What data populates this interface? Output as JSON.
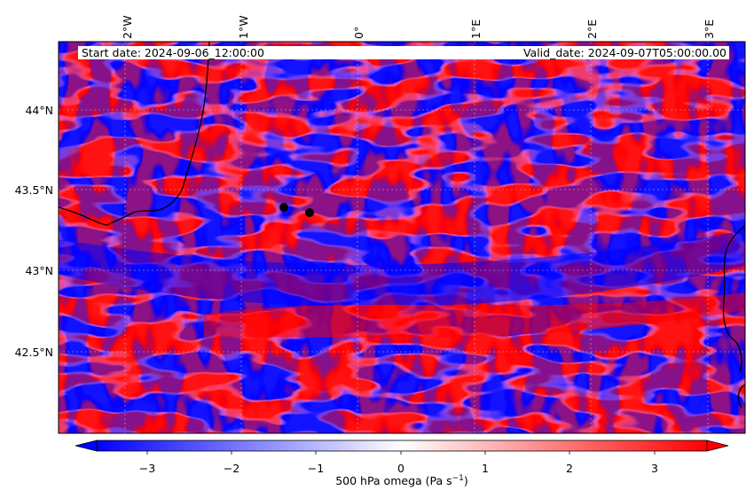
{
  "map": {
    "annotation_left": "Start date: 2024-09-06_12:00:00",
    "annotation_right": "Valid_date: 2024-09-07T05:00:00.00",
    "lon_ticks": [
      "2°W",
      "1°W",
      "0°",
      "1°E",
      "2°E",
      "3°E"
    ],
    "lat_ticks": [
      "44°N",
      "43.5°N",
      "43°N",
      "42.5°N"
    ],
    "markers": [
      "station-marker-1",
      "station-marker-2"
    ],
    "field": "500 hPa omega",
    "colormap": "bwr"
  },
  "colorbar": {
    "label": "500 hPa omega (Pa s",
    "label_sup": "−1",
    "label_end": ")",
    "ticks": [
      "−3",
      "−2",
      "−1",
      "0",
      "1",
      "2",
      "3"
    ],
    "range": [
      -3.5,
      3.5
    ],
    "extend": "both"
  },
  "colors": {
    "negative": "#0000ff",
    "zero": "#ffffff",
    "positive": "#ff0000",
    "coastline": "#000000"
  }
}
